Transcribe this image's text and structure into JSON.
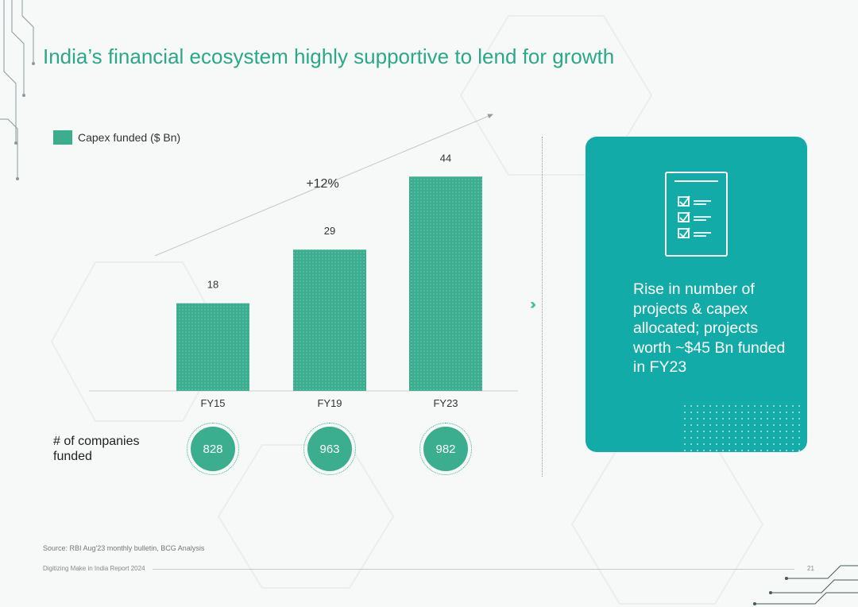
{
  "title": "India’s financial ecosystem highly supportive to lend for growth",
  "chart_data": {
    "type": "bar",
    "categories": [
      "FY15",
      "FY19",
      "FY23"
    ],
    "values": [
      18,
      29,
      44
    ],
    "series": [
      {
        "name": "Capex funded ($ Bn)",
        "values": [
          18,
          29,
          44
        ]
      }
    ],
    "title": "",
    "xlabel": "",
    "ylabel": "",
    "ylim": [
      0,
      46
    ],
    "legend_position": "top-left",
    "grid": false,
    "growth_annotation": "+12%"
  },
  "companies": {
    "label": "# of companies funded",
    "values": [
      "828",
      "963",
      "982"
    ]
  },
  "insight": {
    "text": "Rise in number of projects & capex allocated; projects worth ~$45 Bn funded in FY23"
  },
  "source": "Source: RBI Aug'23 monthly bulletin, BCG Analysis",
  "footer": {
    "report_name": "Digitizing Make in India Report 2024",
    "page_number": "21"
  },
  "colors": {
    "title": "#2aa88a",
    "bar": "#3aae8e",
    "card": "#13aba7",
    "circle": "#3aae8e"
  }
}
